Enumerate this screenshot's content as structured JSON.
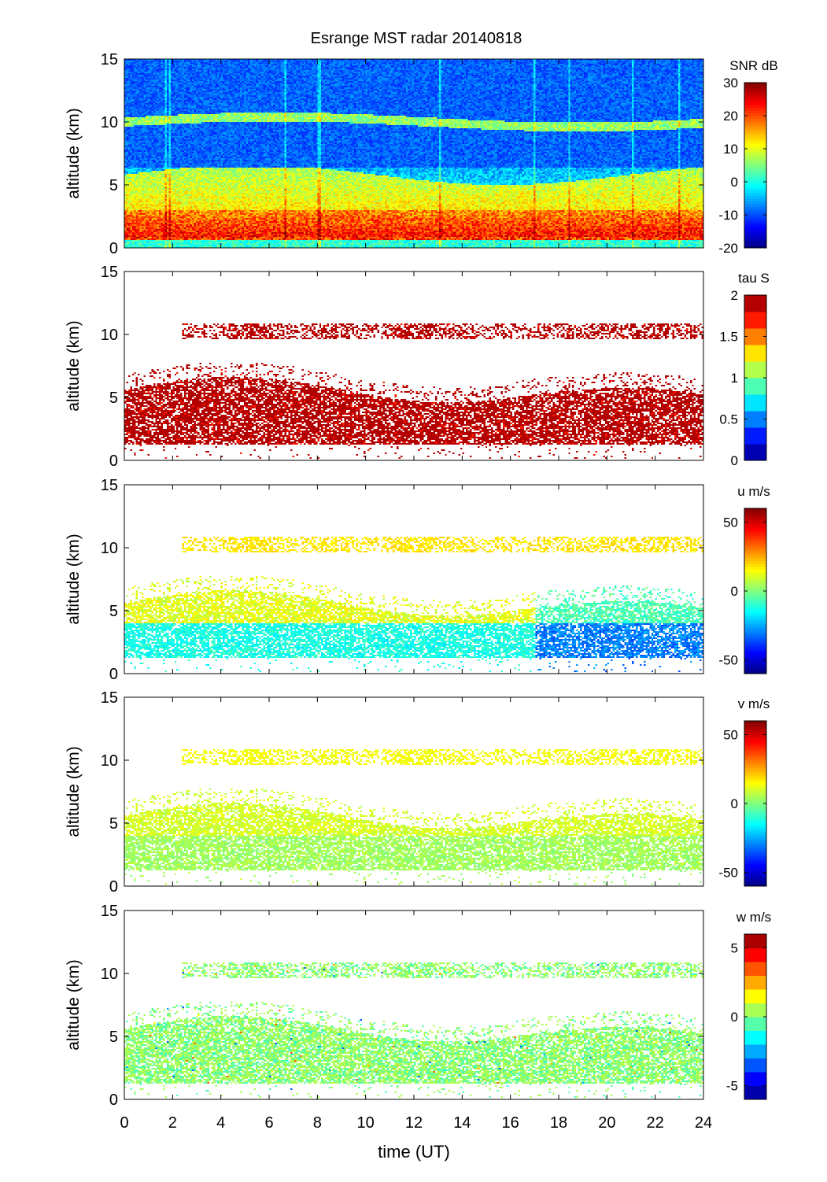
{
  "figure": {
    "title": "Esrange MST radar 20140818",
    "xlabel": "time (UT)",
    "ylabel": "altitude (km)",
    "x_ticks": [
      "0",
      "2",
      "4",
      "6",
      "8",
      "10",
      "12",
      "14",
      "16",
      "18",
      "20",
      "22",
      "24"
    ],
    "y_ticks": [
      "0",
      "5",
      "10",
      "15"
    ]
  },
  "chart_data": [
    {
      "type": "heatmap",
      "parameter": "SNR",
      "colorbar_label": "SNR dB",
      "x_range": [
        0,
        24
      ],
      "y_range": [
        0,
        15
      ],
      "clim": [
        -20,
        30
      ],
      "colorbar_ticks": [
        "30",
        "20",
        "10",
        "0",
        "-10",
        "-20"
      ],
      "colormap": "jet-continuous",
      "features": {
        "dense_coverage": true,
        "high_snr_layer_km": [
          0.8,
          3.0
        ],
        "tropopause_layer_km": 10.2
      }
    },
    {
      "type": "heatmap",
      "parameter": "tau",
      "colorbar_label": "tau S",
      "x_range": [
        0,
        24
      ],
      "y_range": [
        0,
        15
      ],
      "clim": [
        0,
        2
      ],
      "colorbar_ticks": [
        "2",
        "1.5",
        "1",
        "0.5",
        "0"
      ],
      "colormap": "jet-10-levels",
      "features": {
        "dominant_value": 2.0
      }
    },
    {
      "type": "heatmap",
      "parameter": "u",
      "colorbar_label": "u m/s",
      "x_range": [
        0,
        24
      ],
      "y_range": [
        0,
        15
      ],
      "clim": [
        -60,
        60
      ],
      "colorbar_ticks": [
        "50",
        "0",
        "-50"
      ],
      "colormap": "jet-continuous",
      "features": {
        "lower_value": -12,
        "upper_value": 12,
        "tropopause_value": 18
      }
    },
    {
      "type": "heatmap",
      "parameter": "v",
      "colorbar_label": "v m/s",
      "x_range": [
        0,
        24
      ],
      "y_range": [
        0,
        15
      ],
      "clim": [
        -60,
        60
      ],
      "colorbar_ticks": [
        "50",
        "0",
        "-50"
      ],
      "colormap": "jet-continuous",
      "features": {
        "lower_value": 4,
        "upper_value": 10,
        "tropopause_value": 14
      }
    },
    {
      "type": "heatmap",
      "parameter": "w",
      "colorbar_label": "w m/s",
      "x_range": [
        0,
        24
      ],
      "y_range": [
        0,
        15
      ],
      "clim": [
        -6,
        6
      ],
      "colorbar_ticks": [
        "5",
        "0",
        "-5"
      ],
      "colormap": "jet-12-levels",
      "features": {
        "dominant_value": 0.2
      }
    }
  ]
}
